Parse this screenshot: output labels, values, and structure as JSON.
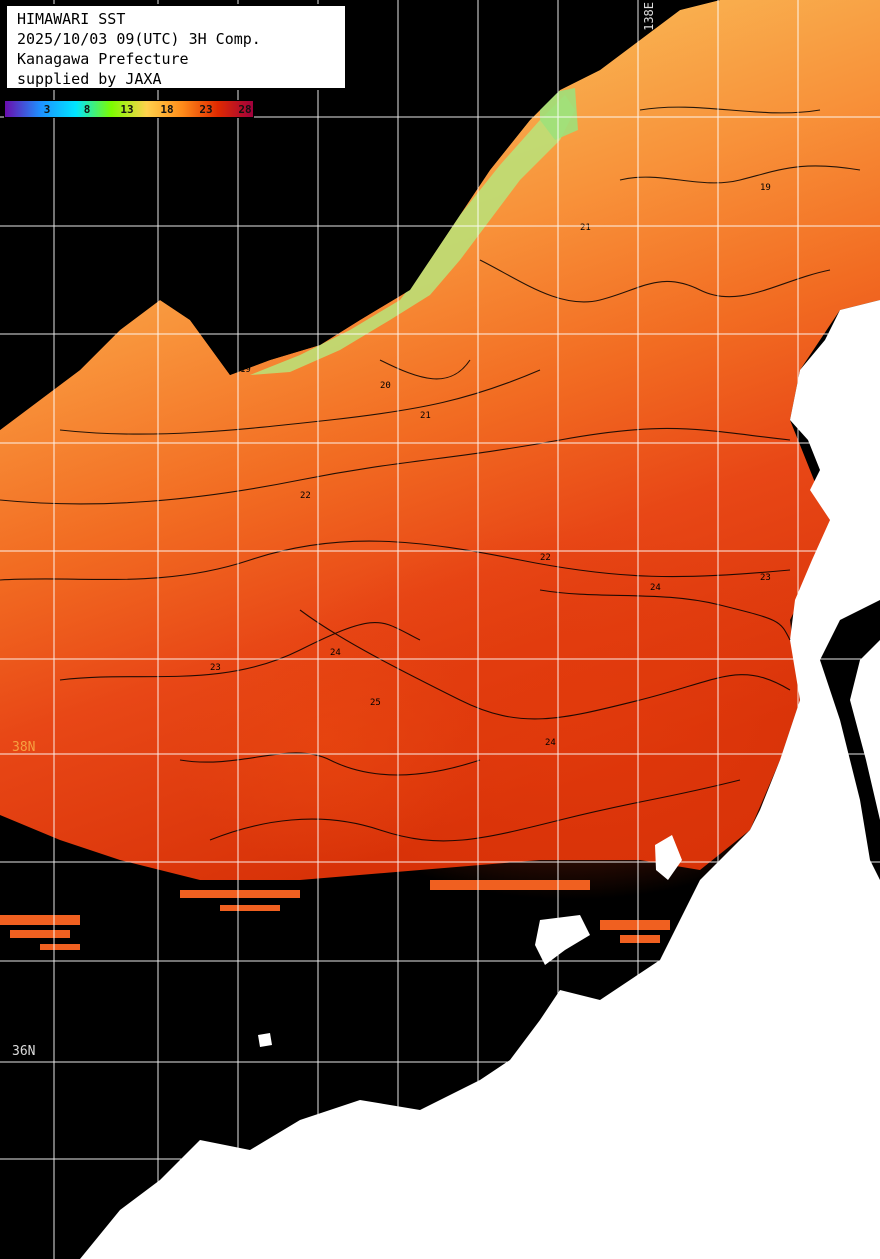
{
  "header": {
    "line1": "HIMAWARI SST",
    "line2": "2025/10/03 09(UTC) 3H Comp.",
    "line3": "Kanagawa Prefecture",
    "line4": "supplied by JAXA"
  },
  "colorbar": {
    "ticks": [
      "3",
      "8",
      "13",
      "18",
      "23",
      "28"
    ],
    "colors": [
      "#6a0dad",
      "#1e90ff",
      "#00e5ff",
      "#7cfc00",
      "#ffd24d",
      "#ff8c1a",
      "#e02a00",
      "#a0003c"
    ]
  },
  "grid_labels": {
    "lat_38": "38N",
    "lat_36": "36N",
    "lon_138": "138E"
  },
  "colors": {
    "land": "#ffffff",
    "no_data": "#000000",
    "grid": "#ffffff",
    "contour": "#000000"
  },
  "isotherms": [
    "19",
    "20",
    "21",
    "22",
    "23",
    "24",
    "25"
  ]
}
